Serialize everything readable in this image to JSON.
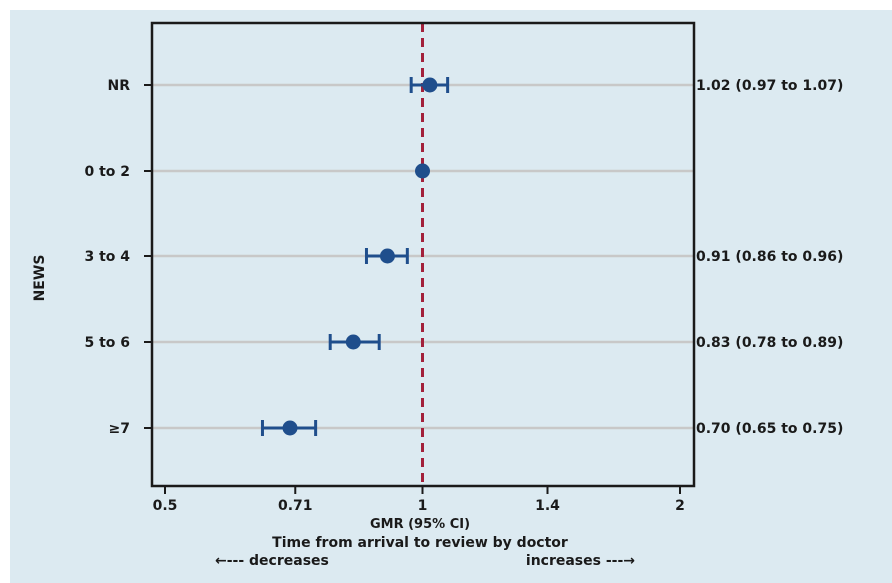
{
  "chart_data": {
    "type": "scatter",
    "subtype": "forest-plot",
    "title": "",
    "xlabel": "GMR (95% CI)",
    "ylabel": "NEWS",
    "x_scale": "log",
    "xlim": [
      0.5,
      2
    ],
    "x_ticks": [
      {
        "value": 0.5,
        "label": "0.5"
      },
      {
        "value": 0.71,
        "label": "0.71"
      },
      {
        "value": 1,
        "label": "1"
      },
      {
        "value": 1.4,
        "label": "1.4"
      },
      {
        "value": 2,
        "label": "2"
      }
    ],
    "reference_line": 1,
    "categories": [
      "NR",
      "0 to 2",
      "3 to 4",
      "5 to 6",
      "≥7"
    ],
    "estimates": [
      1.02,
      1.0,
      0.91,
      0.83,
      0.7
    ],
    "ci_lower": [
      0.97,
      null,
      0.86,
      0.78,
      0.65
    ],
    "ci_upper": [
      1.07,
      null,
      0.96,
      0.89,
      0.75
    ],
    "annotations": [
      "1.02 (0.97 to 1.07)",
      "",
      "0.91 (0.86 to 0.96)",
      "0.83 (0.78 to 0.89)",
      "0.70 (0.65 to 0.75)"
    ],
    "caption": "Time from arrival to review by doctor",
    "direction_left": "←--- decreases",
    "direction_right": "increases ---→",
    "grid": "horizontal",
    "colors": {
      "background": "#dceaf1",
      "point": "#1f4e8c",
      "reference": "#a3213b",
      "gridline": "#c8c8c8",
      "frame": "#1a1a1a"
    }
  }
}
